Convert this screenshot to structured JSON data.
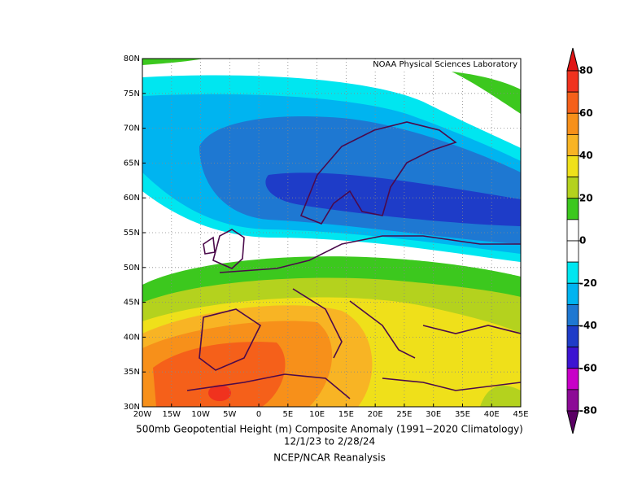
{
  "map": {
    "source_label": "NOAA Physical Sciences Laboratory",
    "title": "500mb Geopotential Height (m) Composite Anomaly (1991−2020 Climatology)",
    "subtitle": "12/1/23  to 2/28/24",
    "credit": "NCEP/NCAR Reanalysis",
    "x_labels": [
      "20W",
      "15W",
      "10W",
      "5W",
      "0",
      "5E",
      "10E",
      "15E",
      "20E",
      "25E",
      "30E",
      "35E",
      "40E",
      "45E"
    ],
    "y_labels": [
      "80N",
      "75N",
      "70N",
      "65N",
      "60N",
      "55N",
      "50N",
      "45N",
      "40N",
      "35N",
      "30N"
    ],
    "colorbar": {
      "ticks": [
        80,
        60,
        40,
        20,
        0,
        -20,
        -40,
        -60,
        -80
      ],
      "colors": [
        "#e01414",
        "#f0321e",
        "#f5601a",
        "#f7901a",
        "#f8b424",
        "#efe01a",
        "#b4d21e",
        "#3cc81e",
        "#ffffff",
        "#ffffff",
        "#00e6f0",
        "#00b4f0",
        "#1e78d2",
        "#1e3cc8",
        "#3c14d2",
        "#c800c8",
        "#8c0a96",
        "#5a0064"
      ]
    }
  }
}
